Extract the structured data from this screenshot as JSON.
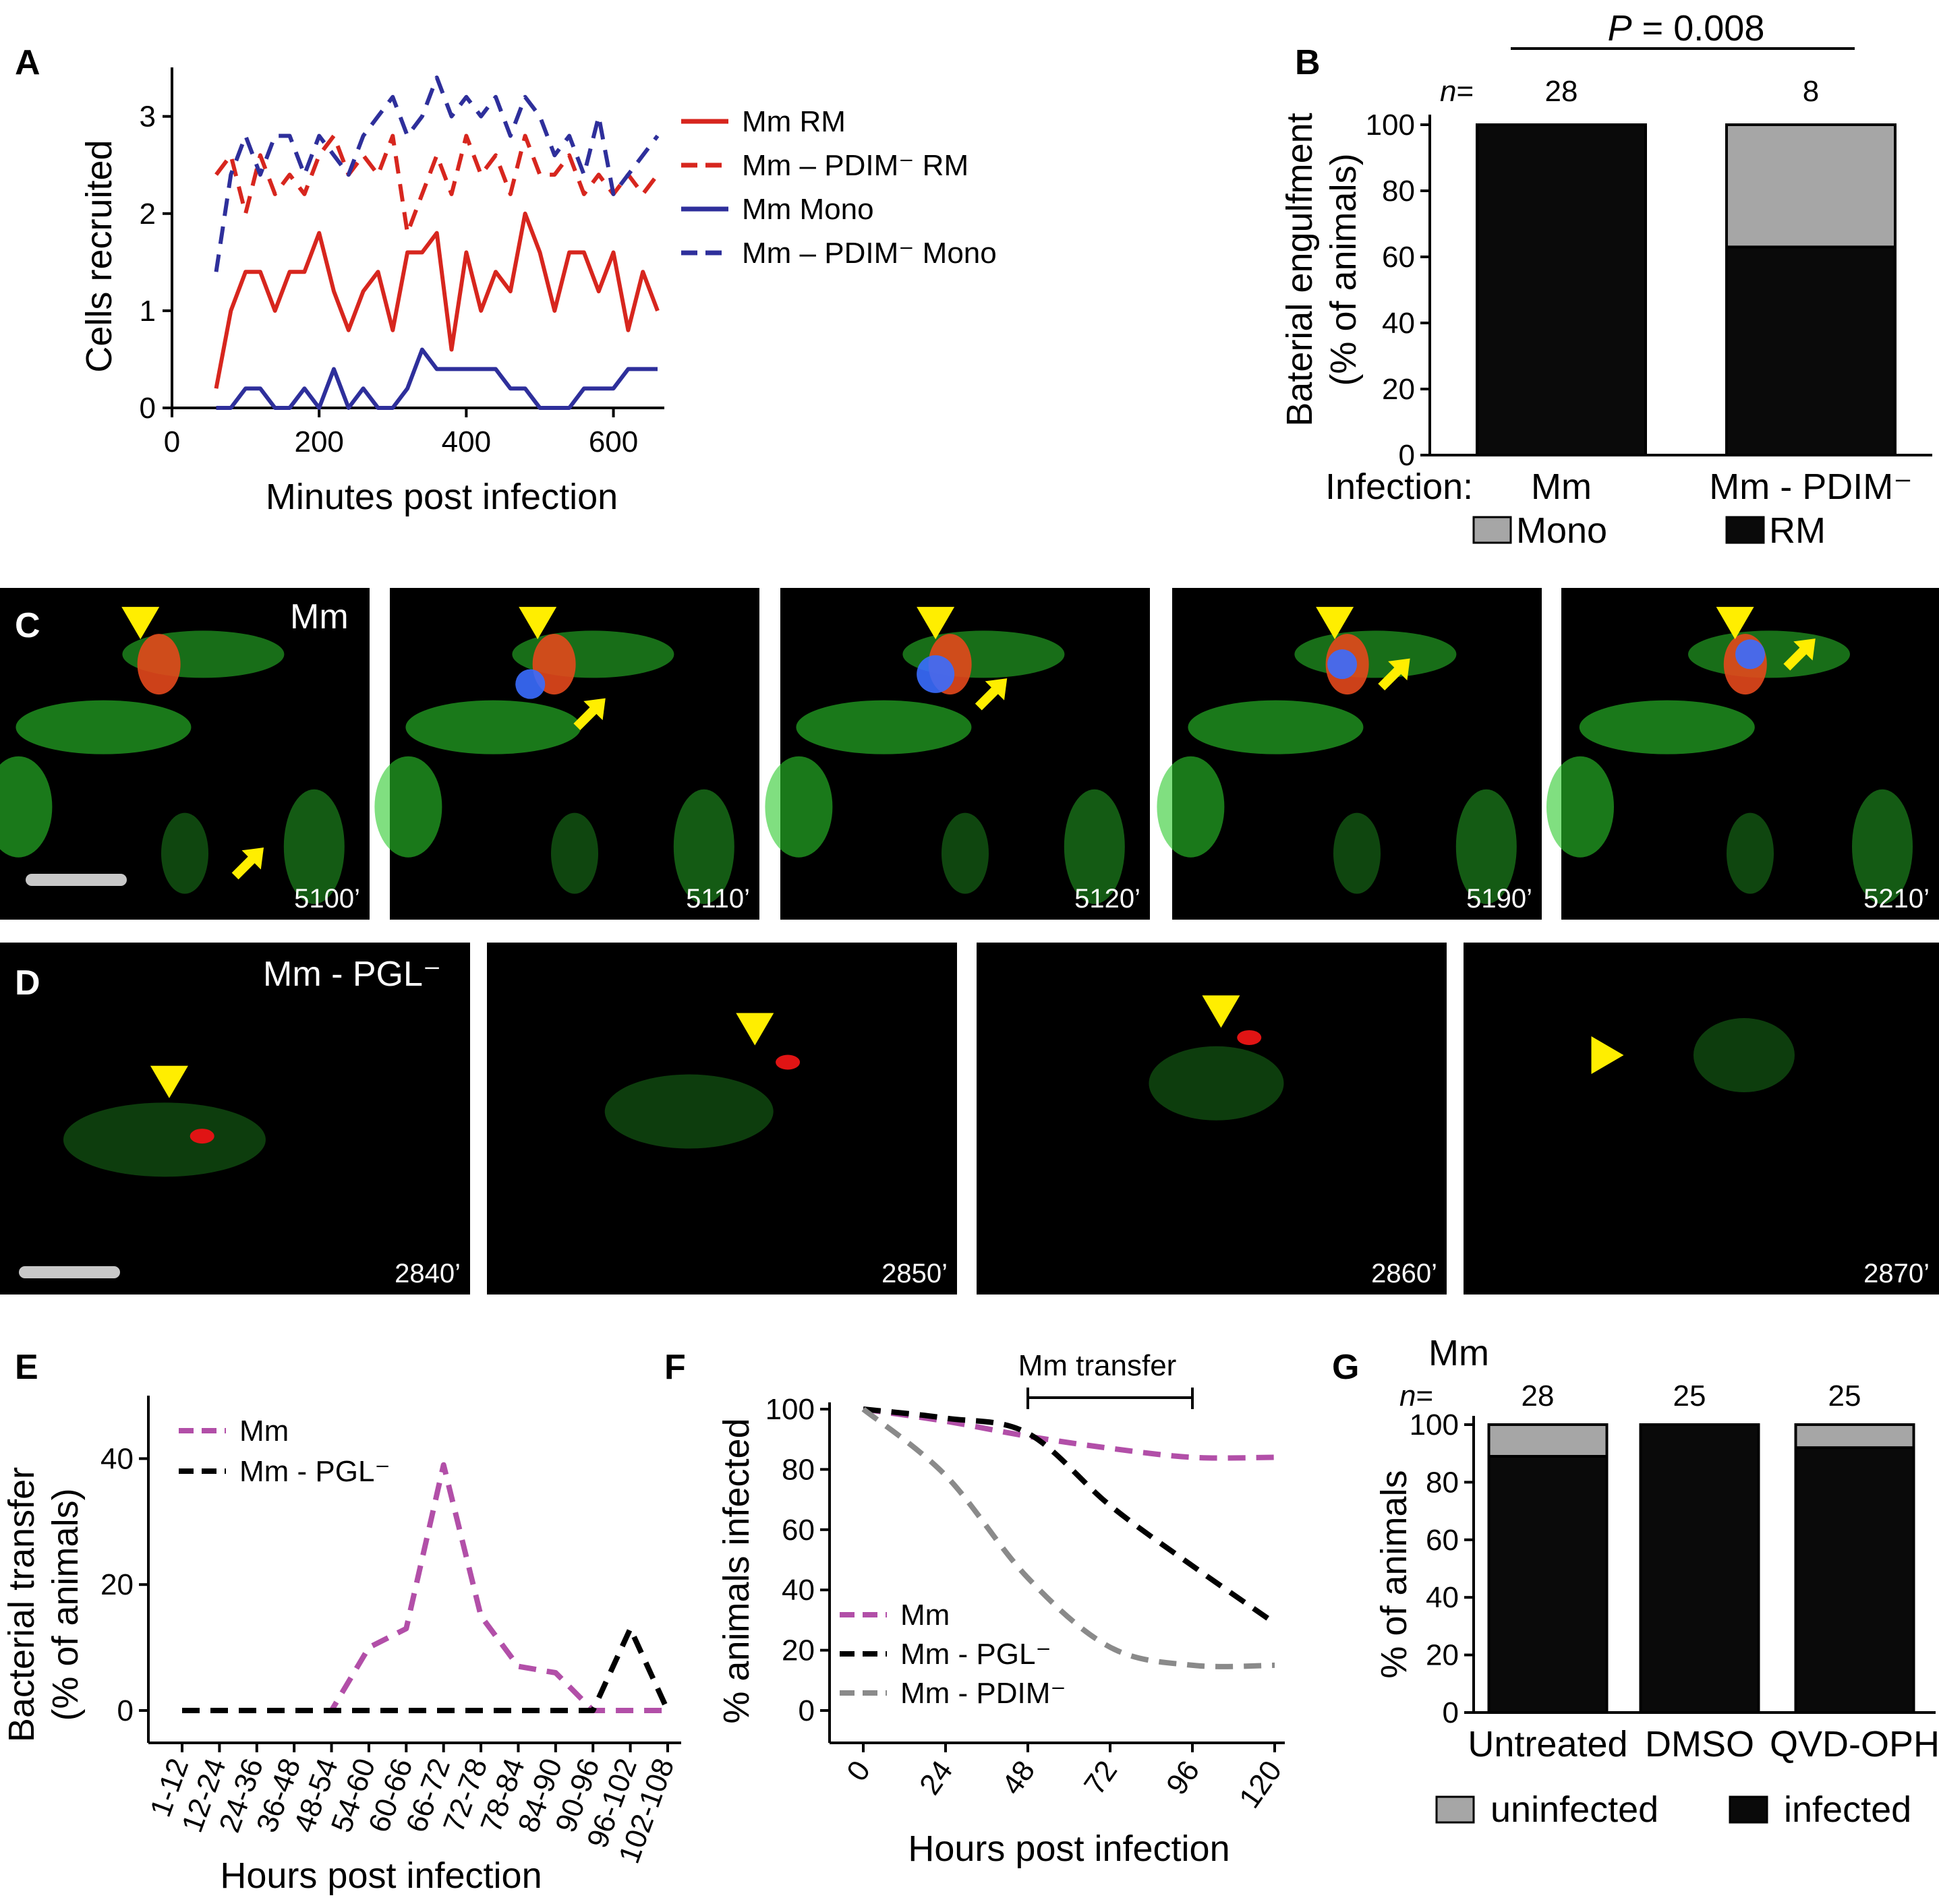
{
  "colors": {
    "rm": "#d7261e",
    "mono": "#2e2f9b",
    "mm_magenta": "#b24fa8",
    "pgl_black": "#000000",
    "pdim_gray": "#8a8a8a",
    "bar_black": "#0a0a0a",
    "bar_gray": "#a6a6a6",
    "arrow_yellow": "#ffee00",
    "cell_green": "#2cc92c"
  },
  "panels": {
    "A": "A",
    "B": "B",
    "C": "C",
    "D": "D",
    "E": "E",
    "F": "F",
    "G": "G"
  },
  "panel_c": {
    "label": "Mm",
    "frames": [
      "5100’",
      "5110’",
      "5120’",
      "5190’",
      "5210’"
    ]
  },
  "panel_d": {
    "label": "Mm - PGL⁻",
    "frames": [
      "2840’",
      "2850’",
      "2860’",
      "2870’"
    ]
  },
  "chart_data": [
    {
      "id": "A",
      "type": "line",
      "xlabel": "Minutes post infection",
      "ylabel": "Cells recruited",
      "xlim": [
        0,
        660
      ],
      "ylim": [
        0,
        3.4
      ],
      "xticks": [
        0,
        200,
        400,
        600
      ],
      "yticks": [
        0,
        1,
        2,
        3
      ],
      "legend_position": "right",
      "x": [
        60,
        80,
        100,
        120,
        140,
        160,
        180,
        200,
        220,
        240,
        260,
        280,
        300,
        320,
        340,
        360,
        380,
        400,
        420,
        440,
        460,
        480,
        500,
        520,
        540,
        560,
        580,
        600,
        620,
        640,
        660
      ],
      "series": [
        {
          "name": "Mm RM",
          "style": "solid",
          "color_key": "rm",
          "values": [
            0.2,
            1.0,
            1.4,
            1.4,
            1.0,
            1.4,
            1.4,
            1.8,
            1.2,
            0.8,
            1.2,
            1.4,
            0.8,
            1.6,
            1.6,
            1.8,
            0.6,
            1.6,
            1.0,
            1.4,
            1.2,
            2.0,
            1.6,
            1.0,
            1.6,
            1.6,
            1.2,
            1.6,
            0.8,
            1.4,
            1.0
          ]
        },
        {
          "name": "Mm – PDIM⁻ RM",
          "style": "dashed",
          "color_key": "rm",
          "values": [
            2.4,
            2.6,
            2.0,
            2.6,
            2.2,
            2.4,
            2.2,
            2.6,
            2.8,
            2.4,
            2.6,
            2.4,
            2.8,
            1.8,
            2.2,
            2.6,
            2.2,
            2.8,
            2.4,
            2.6,
            2.2,
            2.8,
            2.4,
            2.4,
            2.6,
            2.2,
            2.4,
            2.2,
            2.4,
            2.2,
            2.4
          ]
        },
        {
          "name": "Mm Mono",
          "style": "solid",
          "color_key": "mono",
          "values": [
            0.0,
            0.0,
            0.2,
            0.2,
            0.0,
            0.0,
            0.2,
            0.0,
            0.4,
            0.0,
            0.2,
            0.0,
            0.0,
            0.2,
            0.6,
            0.4,
            0.4,
            0.4,
            0.4,
            0.4,
            0.2,
            0.2,
            0.0,
            0.0,
            0.0,
            0.2,
            0.2,
            0.2,
            0.4,
            0.4,
            0.4
          ]
        },
        {
          "name": "Mm – PDIM⁻ Mono",
          "style": "dashed",
          "color_key": "mono",
          "values": [
            1.4,
            2.4,
            2.8,
            2.4,
            2.8,
            2.8,
            2.4,
            2.8,
            2.6,
            2.4,
            2.8,
            3.0,
            3.2,
            2.8,
            3.0,
            3.4,
            3.0,
            3.2,
            3.0,
            3.2,
            2.8,
            3.2,
            3.0,
            2.6,
            2.8,
            2.4,
            3.0,
            2.2,
            2.4,
            2.6,
            2.8
          ]
        }
      ]
    },
    {
      "id": "B",
      "type": "bar",
      "stacked": true,
      "ylabel_line1": "Baterial engulfment",
      "ylabel_line2": "(% of animals)",
      "ylim": [
        0,
        100
      ],
      "yticks": [
        0,
        20,
        40,
        60,
        80,
        100
      ],
      "infection_label": "Infection:",
      "categories": [
        "Mm",
        "Mm - PDIM⁻"
      ],
      "n_label": "n",
      "n_eq": "=",
      "n_values": [
        "28",
        "8"
      ],
      "p_label": "P",
      "p_value": " = 0.008",
      "series": [
        {
          "name": "RM",
          "color_key": "bar_black",
          "values": [
            100,
            63
          ]
        },
        {
          "name": "Mono",
          "color_key": "bar_gray",
          "values": [
            0,
            37
          ]
        }
      ],
      "legend_position": "bottom"
    },
    {
      "id": "E",
      "type": "line",
      "xlabel": "Hours post infection",
      "ylabel_line1": "Bacterial transfer",
      "ylabel_line2": "(% of animals)",
      "ylim": [
        0,
        50
      ],
      "yticks": [
        0,
        20,
        40
      ],
      "categories": [
        "1-12",
        "12-24",
        "24-36",
        "36-48",
        "48-54",
        "54-60",
        "60-66",
        "66-72",
        "72-78",
        "78-84",
        "84-90",
        "90-96",
        "96-102",
        "102-108"
      ],
      "legend_position": "top-left",
      "series": [
        {
          "name": "Mm",
          "style": "dashed",
          "color_key": "mm_magenta",
          "values": [
            0,
            0,
            0,
            0,
            0,
            10,
            13,
            39,
            15,
            7,
            6,
            0,
            0,
            0
          ]
        },
        {
          "name": "Mm - PGL⁻",
          "style": "dashed",
          "color_key": "pgl_black",
          "values": [
            0,
            0,
            0,
            0,
            0,
            0,
            0,
            0,
            0,
            0,
            0,
            0,
            13,
            0
          ]
        }
      ]
    },
    {
      "id": "F",
      "type": "line",
      "xlabel": "Hours post infection",
      "ylabel": "% animals infected",
      "xlim": [
        0,
        120
      ],
      "ylim": [
        0,
        100
      ],
      "xticks": [
        0,
        24,
        48,
        72,
        96,
        120
      ],
      "yticks": [
        0,
        20,
        40,
        60,
        80,
        100
      ],
      "annotation": "Mm transfer",
      "annotation_range": [
        48,
        96
      ],
      "legend_position": "bottom-left",
      "x": [
        0,
        24,
        48,
        72,
        96,
        120
      ],
      "series": [
        {
          "name": "Mm",
          "style": "dashed",
          "color_key": "mm_magenta",
          "values": [
            100,
            96,
            91,
            87,
            84,
            84
          ]
        },
        {
          "name": "Mm - PGL⁻",
          "style": "dashed",
          "color_key": "pgl_black",
          "values": [
            100,
            97,
            92,
            68,
            48,
            29
          ]
        },
        {
          "name": "Mm - PDIM⁻",
          "style": "dashed",
          "color_key": "pdim_gray",
          "values": [
            100,
            78,
            44,
            21,
            15,
            15
          ]
        }
      ]
    },
    {
      "id": "G",
      "type": "bar",
      "stacked": true,
      "title": "Mm",
      "ylabel": "% of animals",
      "ylim": [
        0,
        100
      ],
      "yticks": [
        0,
        20,
        40,
        60,
        80,
        100
      ],
      "categories": [
        "Untreated",
        "DMSO",
        "QVD-OPH"
      ],
      "n_label": "n",
      "n_eq": "=",
      "n_values": [
        "28",
        "25",
        "25"
      ],
      "series": [
        {
          "name": "infected",
          "color_key": "bar_black",
          "values": [
            89,
            100,
            92
          ]
        },
        {
          "name": "uninfected",
          "color_key": "bar_gray",
          "values": [
            11,
            0,
            8
          ]
        }
      ],
      "legend_position": "bottom"
    }
  ]
}
